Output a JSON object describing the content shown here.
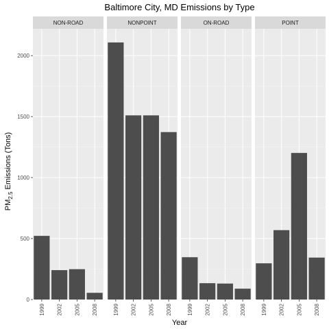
{
  "chart_data": {
    "type": "bar",
    "title": "Baltimore City, MD Emissions by Type",
    "xlabel": "Year",
    "ylabel": {
      "prefix": "PM",
      "subscript": "2.5",
      "suffix": " Emissions (Tons)"
    },
    "ylim": [
      0,
      2220
    ],
    "yticks": [
      0,
      500,
      1000,
      1500,
      2000
    ],
    "categories": [
      "1999",
      "2002",
      "2005",
      "2008"
    ],
    "facets": [
      {
        "name": "NON-ROAD",
        "values": [
          522,
          241,
          249,
          55
        ]
      },
      {
        "name": "NONPOINT",
        "values": [
          2108,
          1510,
          1510,
          1373
        ]
      },
      {
        "name": "ON-ROAD",
        "values": [
          347,
          134,
          131,
          89
        ]
      },
      {
        "name": "POINT",
        "values": [
          297,
          569,
          1202,
          344
        ]
      }
    ],
    "bar_color": "#4d4d4d",
    "grid": true
  }
}
